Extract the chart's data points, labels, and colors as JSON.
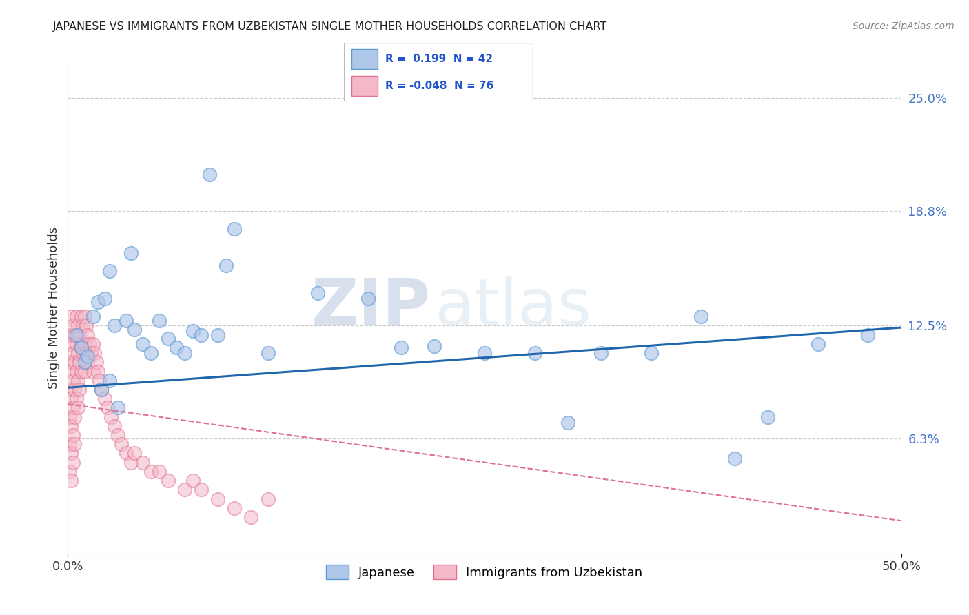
{
  "title": "JAPANESE VS IMMIGRANTS FROM UZBEKISTAN SINGLE MOTHER HOUSEHOLDS CORRELATION CHART",
  "source": "Source: ZipAtlas.com",
  "ylabel_label": "Single Mother Households",
  "right_yticks": [
    "25.0%",
    "18.8%",
    "12.5%",
    "6.3%"
  ],
  "right_ytick_vals": [
    0.25,
    0.188,
    0.125,
    0.063
  ],
  "xlim": [
    0.0,
    0.5
  ],
  "ylim": [
    0.0,
    0.27
  ],
  "r_japanese": 0.199,
  "n_japanese": 42,
  "r_uzbekistan": -0.048,
  "n_uzbekistan": 76,
  "watermark_zip": "ZIP",
  "watermark_atlas": "atlas",
  "blue_scatter_color": "#aec6e8",
  "blue_edge_color": "#5b9bd5",
  "pink_scatter_color": "#f4b8c8",
  "pink_edge_color": "#e07090",
  "blue_line_color": "#2166ac",
  "pink_line_color": "#e07090",
  "legend_label_japanese": "Japanese",
  "legend_label_uzbekistan": "Immigrants from Uzbekistan",
  "jap_line_x0": 0.0,
  "jap_line_y0": 0.091,
  "jap_line_x1": 0.5,
  "jap_line_y1": 0.124,
  "uzb_line_x0": 0.0,
  "uzb_line_y0": 0.082,
  "uzb_line_x1": 0.5,
  "uzb_line_y1": 0.018,
  "japanese_x": [
    0.005,
    0.008,
    0.01,
    0.012,
    0.015,
    0.018,
    0.02,
    0.022,
    0.025,
    0.025,
    0.028,
    0.03,
    0.035,
    0.038,
    0.04,
    0.045,
    0.05,
    0.055,
    0.06,
    0.065,
    0.07,
    0.075,
    0.08,
    0.085,
    0.09,
    0.095,
    0.1,
    0.12,
    0.15,
    0.18,
    0.2,
    0.22,
    0.25,
    0.28,
    0.3,
    0.32,
    0.35,
    0.38,
    0.4,
    0.42,
    0.45,
    0.48
  ],
  "japanese_y": [
    0.12,
    0.113,
    0.105,
    0.108,
    0.13,
    0.138,
    0.09,
    0.14,
    0.155,
    0.095,
    0.125,
    0.08,
    0.128,
    0.165,
    0.123,
    0.115,
    0.11,
    0.128,
    0.118,
    0.113,
    0.11,
    0.122,
    0.12,
    0.208,
    0.12,
    0.158,
    0.178,
    0.11,
    0.143,
    0.14,
    0.113,
    0.114,
    0.11,
    0.11,
    0.072,
    0.11,
    0.11,
    0.13,
    0.052,
    0.075,
    0.115,
    0.12
  ],
  "uzbek_x": [
    0.001,
    0.001,
    0.001,
    0.001,
    0.001,
    0.001,
    0.002,
    0.002,
    0.002,
    0.002,
    0.002,
    0.002,
    0.002,
    0.003,
    0.003,
    0.003,
    0.003,
    0.003,
    0.003,
    0.004,
    0.004,
    0.004,
    0.004,
    0.004,
    0.005,
    0.005,
    0.005,
    0.005,
    0.006,
    0.006,
    0.006,
    0.006,
    0.007,
    0.007,
    0.007,
    0.008,
    0.008,
    0.008,
    0.009,
    0.009,
    0.01,
    0.01,
    0.01,
    0.011,
    0.011,
    0.012,
    0.012,
    0.013,
    0.014,
    0.015,
    0.015,
    0.016,
    0.017,
    0.018,
    0.019,
    0.02,
    0.022,
    0.024,
    0.026,
    0.028,
    0.03,
    0.032,
    0.035,
    0.038,
    0.04,
    0.045,
    0.05,
    0.055,
    0.06,
    0.07,
    0.075,
    0.08,
    0.09,
    0.1,
    0.11,
    0.12
  ],
  "uzbek_y": [
    0.12,
    0.105,
    0.09,
    0.075,
    0.06,
    0.045,
    0.13,
    0.115,
    0.1,
    0.085,
    0.07,
    0.055,
    0.04,
    0.125,
    0.11,
    0.095,
    0.08,
    0.065,
    0.05,
    0.12,
    0.105,
    0.09,
    0.075,
    0.06,
    0.13,
    0.115,
    0.1,
    0.085,
    0.125,
    0.11,
    0.095,
    0.08,
    0.12,
    0.105,
    0.09,
    0.13,
    0.115,
    0.1,
    0.125,
    0.11,
    0.13,
    0.115,
    0.1,
    0.125,
    0.11,
    0.12,
    0.105,
    0.115,
    0.11,
    0.115,
    0.1,
    0.11,
    0.105,
    0.1,
    0.095,
    0.09,
    0.085,
    0.08,
    0.075,
    0.07,
    0.065,
    0.06,
    0.055,
    0.05,
    0.055,
    0.05,
    0.045,
    0.045,
    0.04,
    0.035,
    0.04,
    0.035,
    0.03,
    0.025,
    0.02,
    0.03
  ]
}
